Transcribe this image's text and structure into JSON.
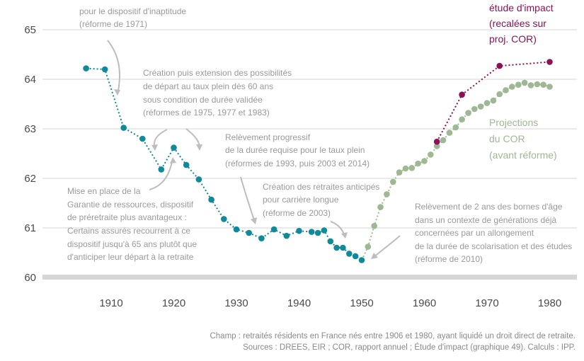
{
  "chart_data": {
    "type": "scatter",
    "xlim": [
      1900,
      1985
    ],
    "ylim": [
      60,
      65
    ],
    "x_ticks": [
      "1910",
      "1920",
      "1930",
      "1940",
      "1950",
      "1960",
      "1970",
      "1980"
    ],
    "y_ticks": [
      "60",
      "61",
      "62",
      "63",
      "64",
      "65"
    ],
    "grid": "horizontal",
    "colors": {
      "observed": "#0f8a9a",
      "impact": "#8b1254",
      "cor": "#9fb894",
      "annot": "#9a9a9a",
      "baseline": "#d6d6d6",
      "grid": "#e4e4e4"
    },
    "series": [
      {
        "x": [
          1906,
          1909,
          1912,
          1915,
          1918,
          1920,
          1922,
          1924,
          1926,
          1928,
          1930,
          1932,
          1934,
          1936,
          1938,
          1940,
          1942,
          1943,
          1944,
          1945,
          1946,
          1947,
          1948,
          1949,
          1950
        ],
        "y": [
          64.22,
          64.2,
          63.02,
          62.8,
          62.18,
          62.62,
          62.27,
          61.98,
          61.57,
          61.18,
          60.97,
          60.9,
          60.79,
          60.97,
          60.84,
          60.94,
          60.92,
          60.9,
          60.95,
          60.73,
          60.6,
          60.6,
          60.48,
          60.43,
          60.35
        ]
      },
      {
        "name": "Projections du COR (avant réforme)",
        "x": [
          1951,
          1952,
          1953,
          1954,
          1955,
          1956,
          1957,
          1958,
          1959,
          1960,
          1961,
          1962,
          1963,
          1964,
          1965,
          1966,
          1967,
          1968,
          1969,
          1970,
          1971,
          1972,
          1973,
          1974,
          1975,
          1976,
          1977,
          1978,
          1979,
          1980
        ],
        "y": [
          60.62,
          61.04,
          61.42,
          61.68,
          61.93,
          62.12,
          62.2,
          62.21,
          62.3,
          62.35,
          62.48,
          62.65,
          62.77,
          62.92,
          63.03,
          63.19,
          63.32,
          63.4,
          63.45,
          63.52,
          63.57,
          63.7,
          63.78,
          63.85,
          63.89,
          63.93,
          63.88,
          63.9,
          63.89,
          63.85
        ]
      },
      {
        "name": "étude d'impact (recalées sur proj. COR)",
        "x": [
          1962,
          1966,
          1972,
          1980
        ],
        "y": [
          62.74,
          63.69,
          64.27,
          64.35
        ]
      }
    ],
    "series_labels": {
      "impact": [
        "étude d'impact",
        "(recalées sur",
        "proj. COR)"
      ],
      "cor": [
        "Projections",
        "du COR",
        "(avant réforme)"
      ]
    },
    "annotations": [
      {
        "lines": [
          "pour le dispositif d'inaptitude",
          "(réforme de 1971)"
        ]
      },
      {
        "lines": [
          "Création puis extension des possibilités",
          "de départ au taux plein dès 60 ans",
          "sous condition de durée validée",
          "(réformes de 1975, 1977 et 1983)"
        ]
      },
      {
        "lines": [
          "Relèvement progressif",
          "de la durée requise pour le taux plein",
          "(réformes de 1993, puis 2003 et 2014)"
        ]
      },
      {
        "lines": [
          "Mise en place de la",
          "Garantie de ressources, dispositif",
          "de préretraite plus avantageux :",
          "Certains assurés recourrent à ce",
          "dispositif jusqu'à 65 ans plutôt que",
          "d'anticiper leur départ à la retraite"
        ]
      },
      {
        "lines": [
          "Création des retraites anticipés",
          "pour carrière longue",
          "(réforme de 2003)"
        ]
      },
      {
        "lines": [
          "Relèvement de 2 ans des bornes d'âge",
          "dans un contexte de générations déjà",
          "concernées par un allongement",
          "de la durée de scolarisation et des études",
          "(réforme de 2010)"
        ]
      }
    ]
  },
  "footer": {
    "line1": "Champ : retraités résidents en France nés entre 1906 et 1980, ayant liquidé un droit direct de retraite.",
    "line2": "Sources : DREES, EIR ; COR, rapport annuel ; Étude d'impact (graphique 49). Calculs : IPP."
  }
}
